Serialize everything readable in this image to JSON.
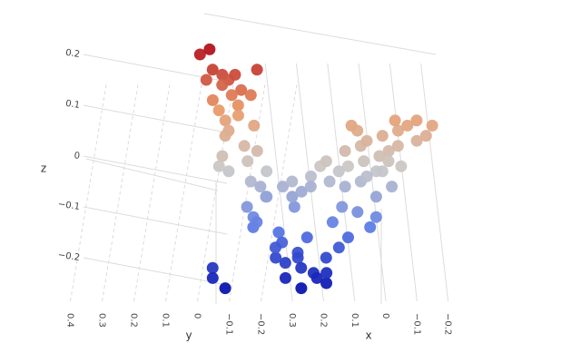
{
  "chart_data": {
    "type": "scatter3d",
    "xaxis_title": "x",
    "yaxis_title": "y",
    "zaxis_title": "z",
    "xlim": [
      -0.25,
      0.35
    ],
    "ylim": [
      -0.25,
      0.45
    ],
    "zlim": [
      -0.3,
      0.25
    ],
    "xticks": [
      0.3,
      0.2,
      0.1,
      0,
      {
        "value": -0.1,
        "label": "−0.1"
      },
      {
        "value": -0.2,
        "label": "−0.2"
      }
    ],
    "yticks": [
      0.4,
      0.3,
      0.2,
      0.1,
      0,
      {
        "value": -0.1,
        "label": "−0.1"
      },
      {
        "value": -0.2,
        "label": "−0.2"
      }
    ],
    "zticks": [
      0.2,
      0.1,
      0,
      {
        "value": -0.1,
        "label": "−0.1"
      },
      {
        "value": -0.2,
        "label": "−0.2"
      }
    ],
    "grid": true,
    "colorscale": [
      "#0b16b0",
      "#5b7be6",
      "#c9c9c9",
      "#eb9a68",
      "#b3141c"
    ],
    "x": [
      0.25,
      0.26,
      0.24,
      0.25,
      0.26,
      0.24,
      0.23,
      0.25,
      0.27,
      0.22,
      0.24,
      0.26,
      0.25,
      0.23,
      0.25,
      0.27,
      0.24,
      0.26,
      0.22,
      0.25,
      0.23,
      0.26,
      0.24,
      0.25,
      0.27,
      0.23,
      0.25,
      0.24,
      0.26,
      0.25,
      0.15,
      0.12,
      0.15,
      0.18,
      0.14,
      0.16,
      0.13,
      0.15,
      0.17,
      0.12,
      0.15,
      0.14,
      0.18,
      0.16,
      0.13,
      0.1,
      0.1,
      0.11,
      0.19,
      0.2,
      0.24,
      0.22,
      0.25,
      0.16,
      0.13,
      0.11,
      0.28,
      0.24,
      0.2,
      0.16,
      0.12,
      0.08,
      0.04,
      0.0,
      -0.04,
      -0.08,
      -0.12,
      -0.16,
      -0.2,
      -0.06,
      0.02,
      0.26,
      0.22,
      0.18,
      0.14,
      0.1,
      0.06,
      0.02,
      -0.02,
      -0.06,
      -0.1,
      -0.14,
      -0.18,
      0.0,
      -0.08,
      0.08,
      0.04,
      0.0,
      -0.04,
      -0.1,
      -0.02,
      0.04,
      0.02,
      -0.03,
      0.06,
      -0.07,
      0.1,
      0.12,
      0.07
    ],
    "y": [
      0.09,
      0.05,
      0.06,
      0.02,
      -0.01,
      0.03,
      -0.02,
      0.07,
      -0.04,
      -0.06,
      0.0,
      0.04,
      -0.03,
      0.05,
      -0.07,
      -0.05,
      0.02,
      -0.01,
      0.04,
      -0.08,
      -0.03,
      0.01,
      -0.05,
      -0.09,
      -0.02,
      -0.1,
      0.03,
      -0.06,
      -0.11,
      -0.12,
      0.04,
      0.05,
      0.02,
      -0.02,
      -0.05,
      -0.08,
      -0.1,
      -0.12,
      -0.15,
      -0.14,
      -0.18,
      -0.2,
      -0.11,
      -0.06,
      -0.03,
      -0.16,
      -0.1,
      -0.21,
      -0.17,
      -0.13,
      0.06,
      0.04,
      0.05,
      -0.22,
      0.0,
      -0.07,
      -0.2,
      -0.19,
      -0.21,
      -0.2,
      -0.18,
      -0.2,
      -0.21,
      -0.19,
      -0.2,
      -0.21,
      -0.2,
      -0.19,
      -0.2,
      -0.22,
      -0.18,
      -0.21,
      -0.2,
      -0.19,
      -0.21,
      -0.2,
      -0.19,
      -0.2,
      -0.21,
      -0.2,
      -0.19,
      -0.21,
      -0.2,
      -0.22,
      -0.18,
      -0.2,
      -0.21,
      -0.19,
      -0.2,
      -0.2,
      -0.2,
      -0.2,
      -0.22,
      -0.19,
      -0.19,
      -0.2,
      -0.21,
      -0.2,
      -0.21
    ],
    "z": [
      0.2,
      0.21,
      0.17,
      0.16,
      0.15,
      0.14,
      0.13,
      0.15,
      0.16,
      0.17,
      0.12,
      0.11,
      0.1,
      0.09,
      0.12,
      0.08,
      0.07,
      0.05,
      0.04,
      0.06,
      0.02,
      0.0,
      -0.01,
      0.01,
      -0.03,
      -0.03,
      -0.02,
      -0.05,
      -0.06,
      -0.08,
      -0.1,
      -0.14,
      -0.12,
      -0.13,
      -0.15,
      -0.17,
      -0.19,
      -0.2,
      -0.22,
      -0.23,
      -0.24,
      -0.25,
      -0.21,
      -0.2,
      -0.18,
      -0.2,
      -0.16,
      -0.18,
      -0.26,
      -0.24,
      -0.22,
      -0.26,
      -0.24,
      -0.23,
      -0.08,
      -0.1,
      -0.06,
      -0.05,
      -0.04,
      -0.02,
      -0.01,
      0.01,
      0.02,
      0.03,
      0.04,
      0.05,
      0.06,
      0.07,
      0.06,
      0.07,
      0.05,
      -0.08,
      -0.07,
      -0.06,
      -0.05,
      -0.03,
      -0.02,
      -0.01,
      0.0,
      0.01,
      0.02,
      0.03,
      0.04,
      -0.03,
      -0.01,
      -0.06,
      -0.05,
      -0.04,
      -0.03,
      -0.02,
      -0.08,
      -0.11,
      -0.14,
      -0.12,
      -0.16,
      -0.06,
      -0.1,
      -0.13,
      0.06
    ]
  }
}
